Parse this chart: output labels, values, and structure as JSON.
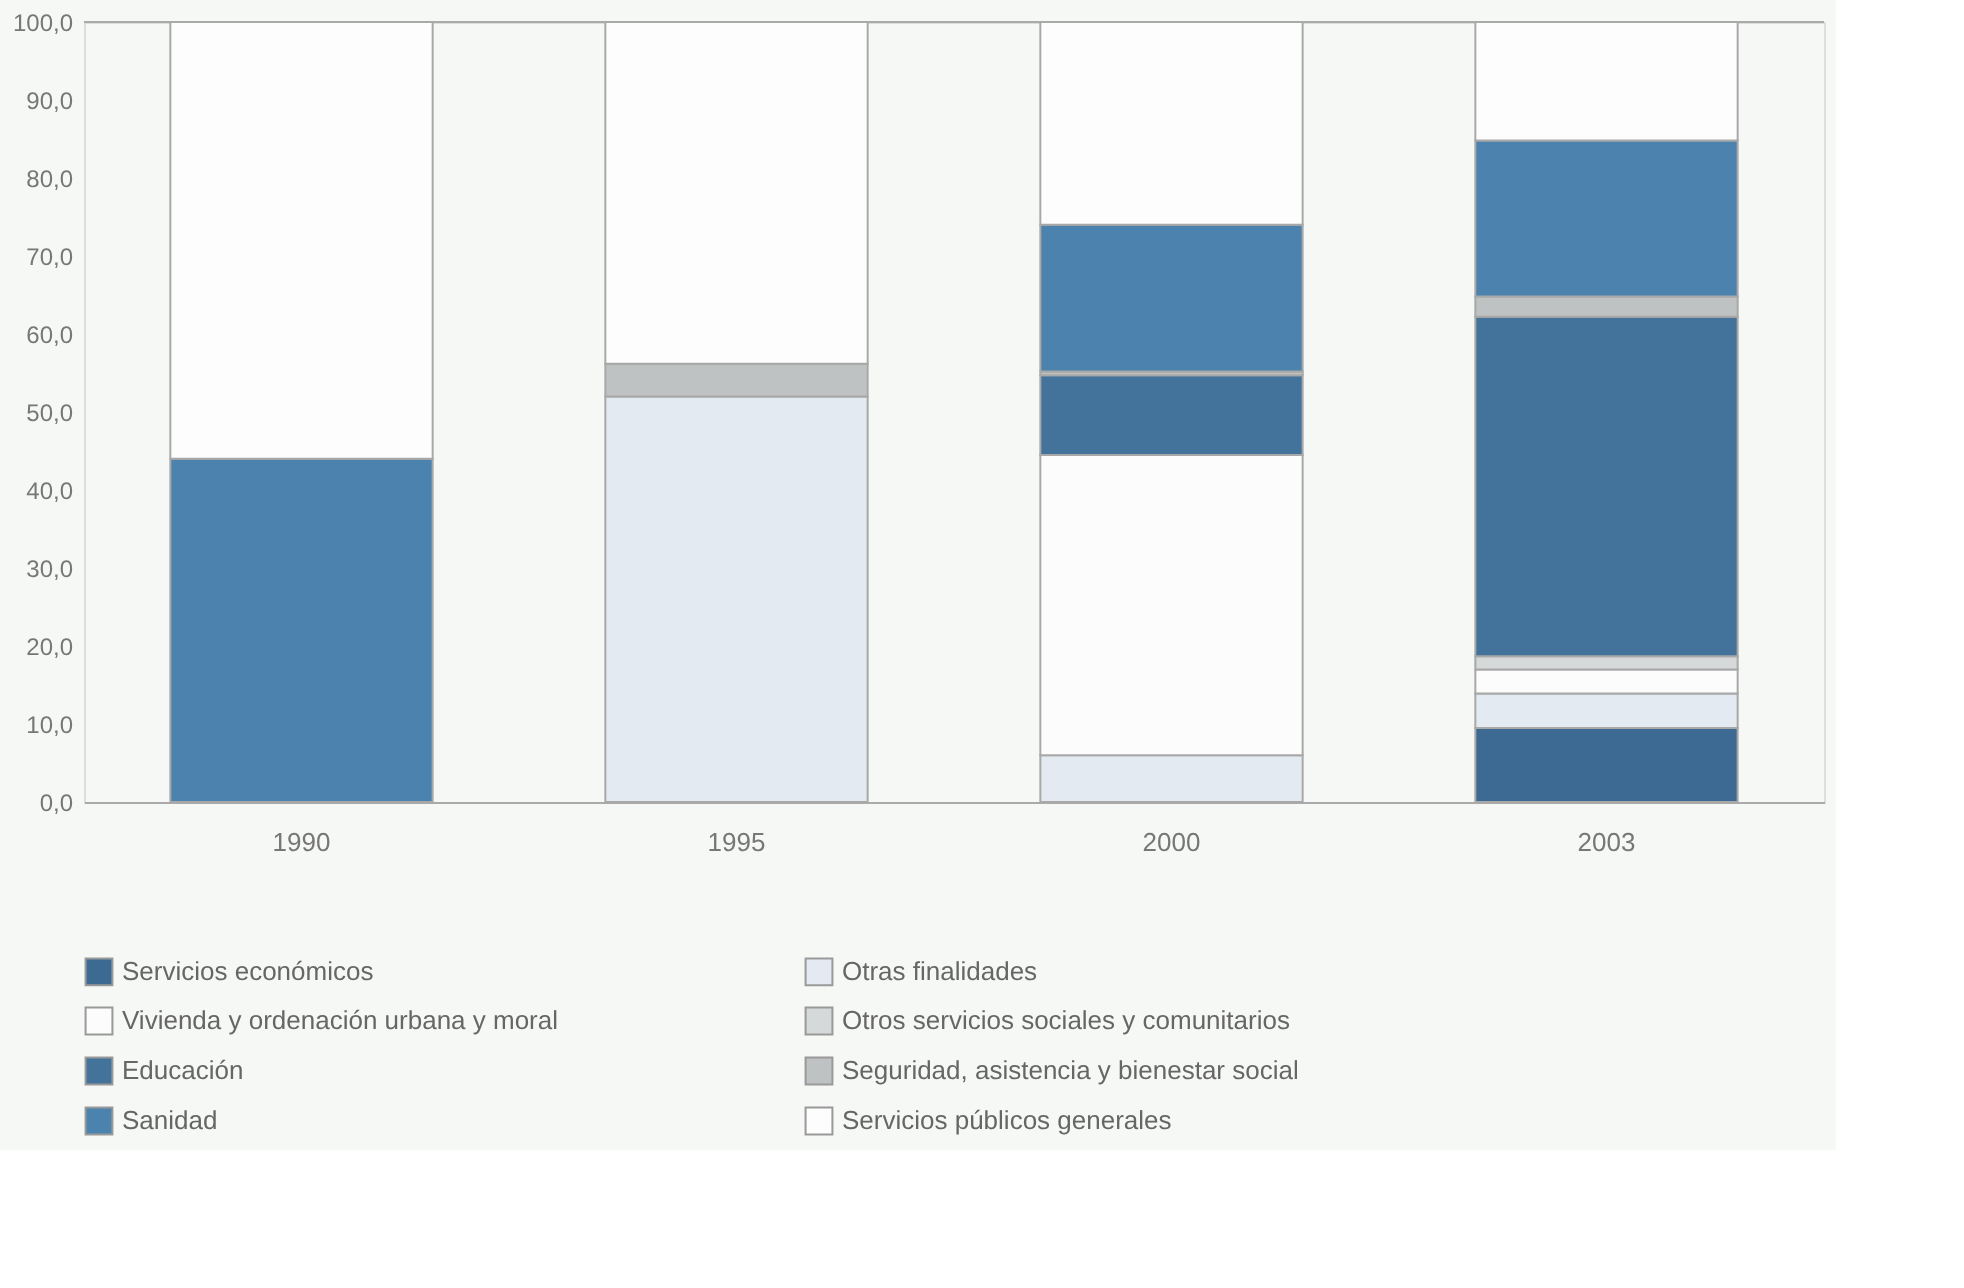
{
  "chart_data": {
    "type": "bar",
    "stacked": true,
    "categories": [
      "1990",
      "1995",
      "2000",
      "2003"
    ],
    "series": [
      {
        "name": "Servicios económicos",
        "color": "#3d6a93",
        "values": [
          null,
          null,
          null,
          9.5
        ]
      },
      {
        "name": "Otras finalidades",
        "color": "#e3eaf2",
        "values": [
          null,
          52,
          6,
          4.4
        ]
      },
      {
        "name": "Vivienda y ordenación urbana y moral",
        "color": "#fbfcfb",
        "values": [
          null,
          null,
          38.5,
          3.1
        ]
      },
      {
        "name": "Otros servicios sociales y comunitarios",
        "color": "#d6d9d9",
        "values": [
          null,
          null,
          null,
          1.7
        ]
      },
      {
        "name": "Educación",
        "color": "#43729b",
        "values": [
          null,
          null,
          10.2,
          43.5
        ]
      },
      {
        "name": "Seguridad, asistencia y bienestar social",
        "color": "#bfc2c2",
        "values": [
          null,
          4.2,
          0.5,
          2.6
        ]
      },
      {
        "name": "Sanidad",
        "color": "#4b82ae",
        "values": [
          44,
          null,
          18.8,
          20
        ]
      },
      {
        "name": "Servicios públicos generales",
        "color": "#fcfdfc",
        "values": [
          56,
          43.8,
          26,
          15.2
        ]
      }
    ],
    "ylim": [
      0,
      100
    ],
    "yticks": [
      {
        "value": 0,
        "label": "0,0"
      },
      {
        "value": 10,
        "label": "10,0"
      },
      {
        "value": 20,
        "label": "20,0"
      },
      {
        "value": 30,
        "label": "30,0"
      },
      {
        "value": 40,
        "label": "40,0"
      },
      {
        "value": 50,
        "label": "50,0"
      },
      {
        "value": 60,
        "label": "60,0"
      },
      {
        "value": 70,
        "label": "70,0"
      },
      {
        "value": 80,
        "label": "80,0"
      },
      {
        "value": 90,
        "label": "90,0"
      },
      {
        "value": 100,
        "label": "100,0"
      }
    ],
    "grid": false,
    "legend": "bottom"
  }
}
